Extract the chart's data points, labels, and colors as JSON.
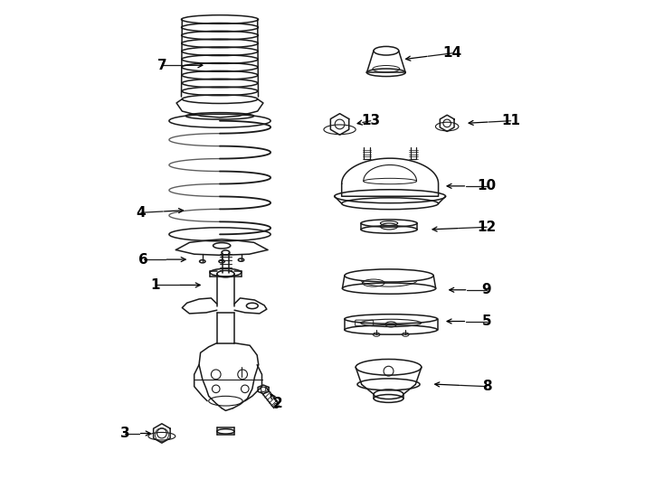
{
  "background_color": "#ffffff",
  "line_color": "#1a1a1a",
  "figsize": [
    7.34,
    5.4
  ],
  "dpi": 100,
  "labels": {
    "1": [
      0.135,
      0.415,
      0.235,
      0.415
    ],
    "2": [
      0.388,
      0.17,
      0.368,
      0.195
    ],
    "3": [
      0.072,
      0.108,
      0.132,
      0.108
    ],
    "4": [
      0.105,
      0.565,
      0.2,
      0.57
    ],
    "5": [
      0.82,
      0.34,
      0.73,
      0.34
    ],
    "6": [
      0.11,
      0.468,
      0.205,
      0.468
    ],
    "7": [
      0.148,
      0.87,
      0.24,
      0.87
    ],
    "8": [
      0.82,
      0.205,
      0.705,
      0.21
    ],
    "9": [
      0.82,
      0.405,
      0.735,
      0.405
    ],
    "10": [
      0.82,
      0.62,
      0.73,
      0.62
    ],
    "11": [
      0.87,
      0.755,
      0.775,
      0.75
    ],
    "12": [
      0.82,
      0.535,
      0.7,
      0.53
    ],
    "13": [
      0.58,
      0.755,
      0.545,
      0.748
    ],
    "14": [
      0.748,
      0.895,
      0.645,
      0.882
    ]
  }
}
